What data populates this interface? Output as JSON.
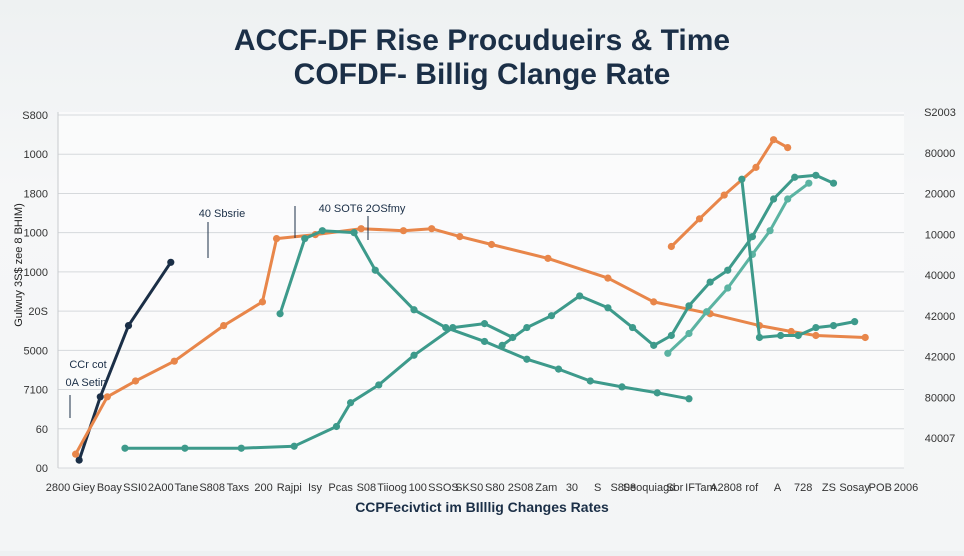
{
  "chart_data": {
    "type": "line",
    "title": "ACCF-DF Rise Procudueirs & Time",
    "subtitle": "COFDF- Billig Clange Rate",
    "xlabel": "CCPFecivtict im BIlllig Changes Rates",
    "ylabel": "Gulwuy 3S$ zee 8 BHIM)",
    "y_ticks_left": [
      "S800",
      "1000",
      "1800",
      "1000",
      "1000",
      "20S",
      "5000",
      "7100",
      "60",
      "00"
    ],
    "y_ticks_right": [
      "S2003",
      "80000",
      "20000",
      "10000",
      "40000",
      "42000",
      "42000",
      "80000",
      "40007"
    ],
    "x_ticks": [
      "2800",
      "Giey",
      "Boay",
      "SSI0",
      "2A00",
      "Tane",
      "S808",
      "Taxs",
      "200",
      "Rajpi",
      "Isy",
      "Pcas",
      "S08",
      "Tiioog",
      "100",
      "SSOS",
      "SKS0",
      "S80",
      "2S08",
      "Zam",
      "30",
      "S",
      "S808",
      "Seoquiagd",
      "Sor",
      "IFTam",
      "A2808",
      "rof",
      "A",
      "728",
      "ZS",
      "Sosay",
      "POB",
      "2006"
    ],
    "annotations": [
      "40 Sbsrie",
      "40 SOT6 2OSfmy",
      "CCr cot",
      "0A Setin"
    ],
    "colors": {
      "navy": "#1b2f47",
      "orange": "#e8864a",
      "teal": "#3d9a8b",
      "teal_light": "#5bb3a2",
      "grid": "#d6d9dc",
      "title": "#1b2f47"
    },
    "series": [
      {
        "color": "navy",
        "x": [
          0.6,
          1.2,
          2.0,
          3.2
        ],
        "y": [
          0.2,
          1.8,
          3.6,
          5.2
        ],
        "markers": true
      },
      {
        "color": "orange",
        "x": [
          0.5,
          1.4,
          2.2,
          3.3,
          4.7,
          5.8,
          6.2,
          7.3,
          8.6,
          9.8,
          10.6,
          11.4,
          12.3,
          13.9,
          15.6,
          16.9,
          18.5,
          19.9,
          20.8,
          21.5,
          22.9
        ],
        "y": [
          0.35,
          1.8,
          2.2,
          2.7,
          3.6,
          4.2,
          5.8,
          5.9,
          6.05,
          6.0,
          6.05,
          5.85,
          5.65,
          5.3,
          4.8,
          4.2,
          3.9,
          3.6,
          3.45,
          3.35,
          3.3
        ],
        "markers": true
      },
      {
        "color": "orange",
        "x": [
          17.4,
          18.2,
          18.9,
          19.8,
          20.3,
          20.7
        ],
        "y": [
          5.6,
          6.3,
          6.9,
          7.6,
          8.3,
          8.1
        ],
        "markers": true
      },
      {
        "color": "teal",
        "x": [
          1.9,
          3.6,
          5.2,
          6.7,
          7.9,
          8.3,
          9.1,
          10.1,
          11.2,
          12.1,
          12.9
        ],
        "y": [
          0.5,
          0.5,
          0.5,
          0.55,
          1.05,
          1.65,
          2.1,
          2.85,
          3.55,
          3.65,
          3.3
        ],
        "markers": true
      },
      {
        "color": "teal",
        "x": [
          6.3,
          7.0,
          7.5,
          8.4,
          9.0,
          10.1,
          11.0,
          12.1,
          13.3,
          14.2,
          15.1,
          16.0,
          17.0,
          17.9
        ],
        "y": [
          3.9,
          5.8,
          6.0,
          5.95,
          5.0,
          4.0,
          3.55,
          3.2,
          2.75,
          2.5,
          2.2,
          2.05,
          1.9,
          1.75
        ],
        "markers": true
      },
      {
        "color": "teal",
        "x": [
          12.6,
          13.3,
          14.0,
          14.8,
          15.6,
          16.3,
          16.9,
          17.4,
          17.9,
          18.5,
          19.0,
          19.7,
          20.3,
          20.9,
          21.5,
          22.0
        ],
        "y": [
          3.1,
          3.55,
          3.85,
          4.35,
          4.05,
          3.55,
          3.1,
          3.35,
          4.1,
          4.7,
          5.0,
          5.85,
          6.8,
          7.35,
          7.4,
          7.2
        ],
        "markers": true
      },
      {
        "color": "teal_light",
        "x": [
          17.3,
          17.9,
          18.4,
          19.0,
          19.7,
          20.2,
          20.7,
          21.3
        ],
        "y": [
          2.9,
          3.4,
          3.95,
          4.55,
          5.4,
          6.0,
          6.8,
          7.2
        ],
        "markers": true
      },
      {
        "color": "teal",
        "x": [
          19.4,
          19.9,
          20.5,
          21.0,
          21.5,
          22.0,
          22.6
        ],
        "y": [
          7.3,
          3.3,
          3.35,
          3.35,
          3.55,
          3.6,
          3.7
        ],
        "markers": true
      }
    ],
    "xlim": [
      0,
      24
    ],
    "ylim": [
      0,
      9
    ],
    "grid": true,
    "legend": "none"
  }
}
